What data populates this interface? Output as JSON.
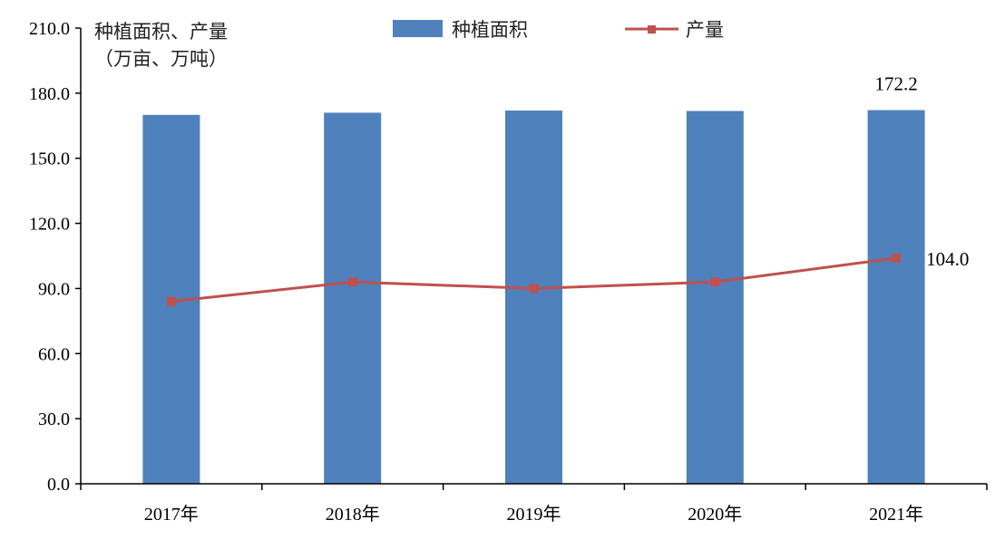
{
  "chart_data": {
    "type": "bar",
    "categories": [
      "2017年",
      "2018年",
      "2019年",
      "2020年",
      "2021年"
    ],
    "series": [
      {
        "name": "种植面积",
        "type": "bar",
        "color": "#4F81BD",
        "values": [
          170.0,
          171.0,
          172.0,
          171.8,
          172.2
        ]
      },
      {
        "name": "产量",
        "type": "line",
        "color": "#C0504D",
        "values": [
          84.0,
          93.0,
          90.0,
          93.0,
          104.0
        ]
      }
    ],
    "ylabel_line1": "种植面积、产量",
    "ylabel_line2": "（万亩、万吨）",
    "ylim": [
      0,
      210
    ],
    "yticks": [
      "0.0",
      "30.0",
      "60.0",
      "90.0",
      "120.0",
      "150.0",
      "180.0",
      "210.0"
    ],
    "data_labels": [
      {
        "series": "种植面积",
        "index": 4,
        "text": "172.2"
      },
      {
        "series": "产量",
        "index": 4,
        "text": "104.0"
      }
    ],
    "grid": false,
    "legend_position": "top"
  }
}
